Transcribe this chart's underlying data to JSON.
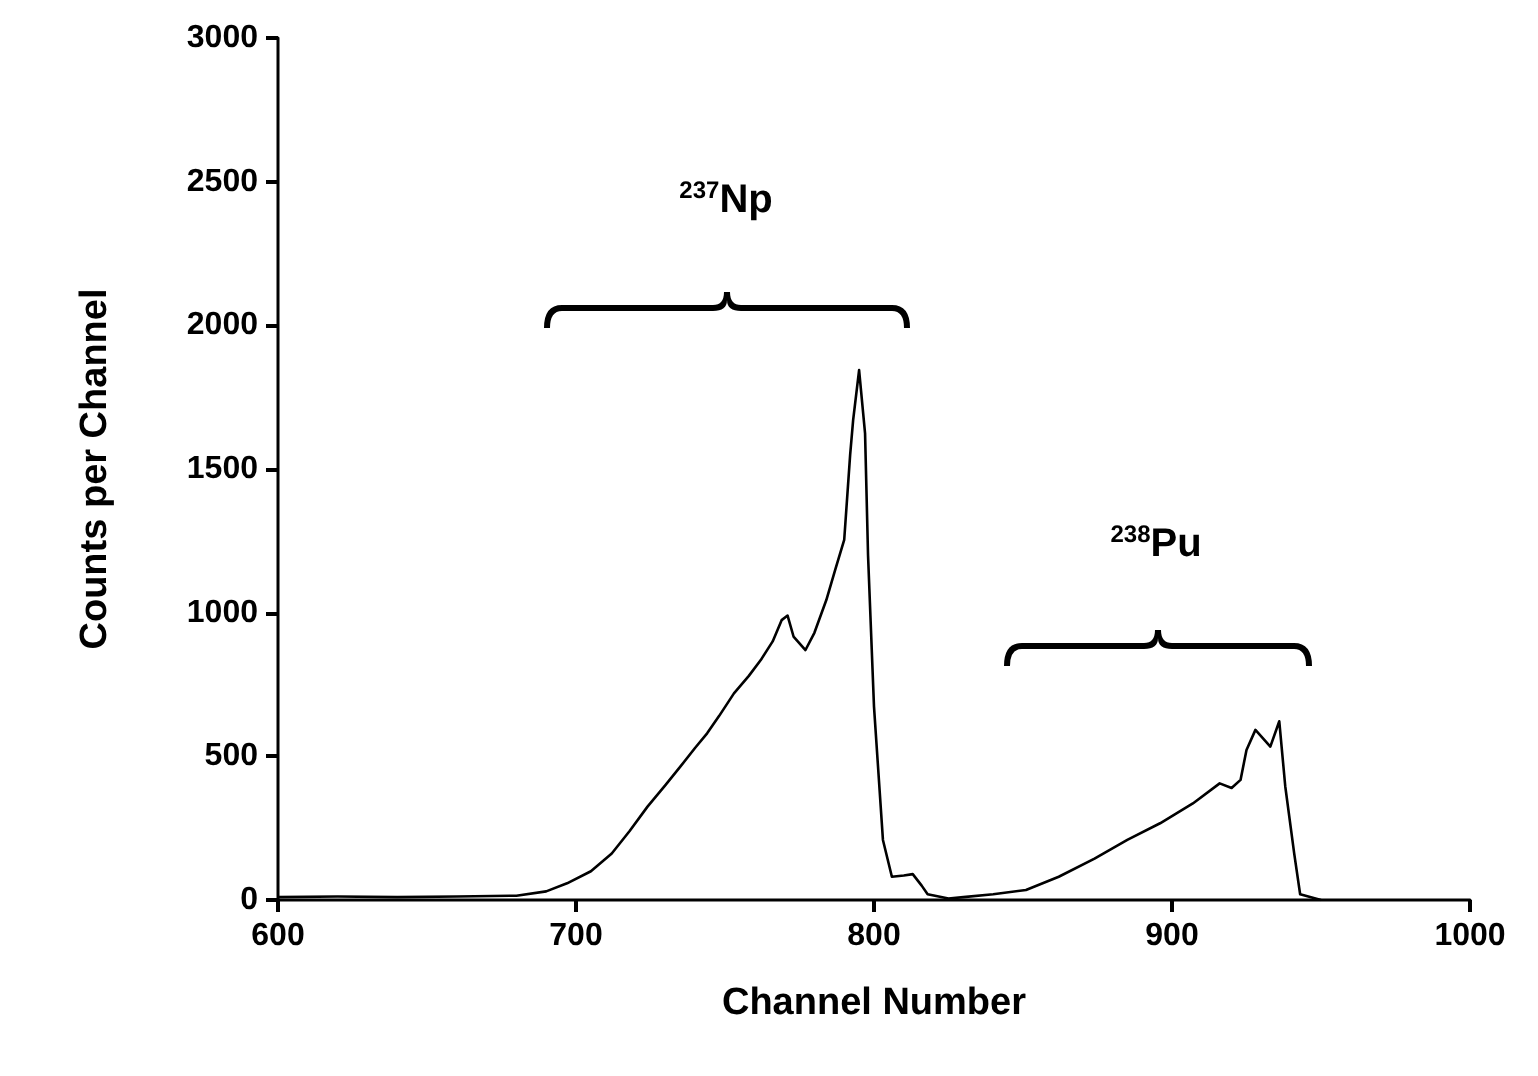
{
  "chart_data": {
    "type": "line",
    "xlabel": "Channel Number",
    "ylabel": "Counts per Channel",
    "color": "#000000",
    "marker": "none",
    "x": [
      600,
      620,
      640,
      660,
      680,
      690,
      697,
      705,
      712,
      718,
      724,
      730,
      735,
      740,
      744,
      748,
      753,
      758,
      762,
      766,
      769,
      771,
      773,
      777,
      780,
      784,
      787,
      790,
      792,
      793,
      795,
      797,
      798,
      800,
      803,
      806,
      810,
      813,
      816,
      818,
      825,
      830,
      840,
      851,
      862,
      874,
      885,
      896,
      907,
      916,
      920,
      923,
      925,
      928,
      933,
      936,
      938,
      941,
      943,
      950
    ],
    "values": [
      10,
      12,
      10,
      12,
      15,
      30,
      58,
      100,
      162,
      240,
      325,
      400,
      464,
      530,
      580,
      640,
      719,
      780,
      835,
      900,
      974,
      990,
      917,
      870,
      930,
      1044,
      1150,
      1253,
      1550,
      1670,
      1844,
      1624,
      1200,
      673,
      209,
      81,
      85,
      90,
      50,
      20,
      5,
      10,
      20,
      35,
      81,
      144,
      209,
      267,
      336,
      406,
      390,
      418,
      522,
      592,
      534,
      622,
      396,
      162,
      20,
      0
    ],
    "xlim": [
      600,
      1000
    ],
    "xticks": [
      600,
      700,
      800,
      900,
      {
        "value": 1000,
        "label": "1000"
      }
    ],
    "ylim": [
      0,
      3000
    ],
    "yticks": [
      0,
      500,
      {
        "value": 1000,
        "label": "1000"
      },
      {
        "value": 1500,
        "label": "1500"
      },
      {
        "value": 2000,
        "label": "2000"
      },
      {
        "value": 2500,
        "label": "2500"
      },
      {
        "value": 3000,
        "label": "3000"
      }
    ],
    "annotations": [
      "$^{237}$Np",
      "$^{238}$Pu"
    ]
  }
}
